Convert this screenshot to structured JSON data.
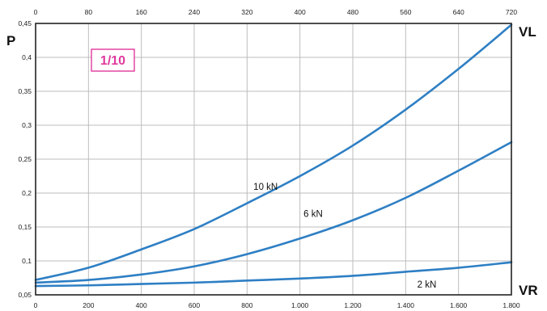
{
  "chart_data": {
    "type": "line",
    "badge": "1/10",
    "colors": {
      "series": "#2e7fc4",
      "badge": "#e0399d",
      "grid": "#bdbdbd",
      "frame": "#222222"
    },
    "ylabel": "P",
    "xlabel_bottom": "VR",
    "xlabel_top": "VL",
    "y_ticks": [
      "0,05",
      "0,1",
      "0,15",
      "0,2",
      "0,25",
      "0,3",
      "0,35",
      "0,4",
      "0,45"
    ],
    "x_bottom_ticks": [
      "0",
      "200",
      "400",
      "600",
      "800",
      "1.000",
      "1.200",
      "1.400",
      "1.600",
      "1.800"
    ],
    "x_top_ticks": [
      "0",
      "80",
      "160",
      "240",
      "320",
      "400",
      "480",
      "560",
      "640",
      "720"
    ],
    "xlim_bottom": [
      0,
      1800
    ],
    "xlim_top": [
      0,
      720
    ],
    "ylim": [
      0.05,
      0.45
    ],
    "grid": true,
    "series": [
      {
        "name": "10 kN",
        "x": [
          0,
          200,
          400,
          600,
          800,
          1000,
          1200,
          1400,
          1600,
          1800
        ],
        "values": [
          0.072,
          0.09,
          0.117,
          0.147,
          0.185,
          0.225,
          0.27,
          0.323,
          0.383,
          0.448
        ]
      },
      {
        "name": "6 kN",
        "x": [
          0,
          200,
          400,
          600,
          800,
          1000,
          1200,
          1400,
          1600,
          1800
        ],
        "values": [
          0.068,
          0.072,
          0.08,
          0.092,
          0.11,
          0.133,
          0.16,
          0.193,
          0.233,
          0.275
        ]
      },
      {
        "name": "2 kN",
        "x": [
          0,
          200,
          400,
          600,
          800,
          1000,
          1200,
          1400,
          1600,
          1800
        ],
        "values": [
          0.063,
          0.064,
          0.066,
          0.068,
          0.071,
          0.074,
          0.078,
          0.084,
          0.09,
          0.098
        ]
      }
    ]
  }
}
